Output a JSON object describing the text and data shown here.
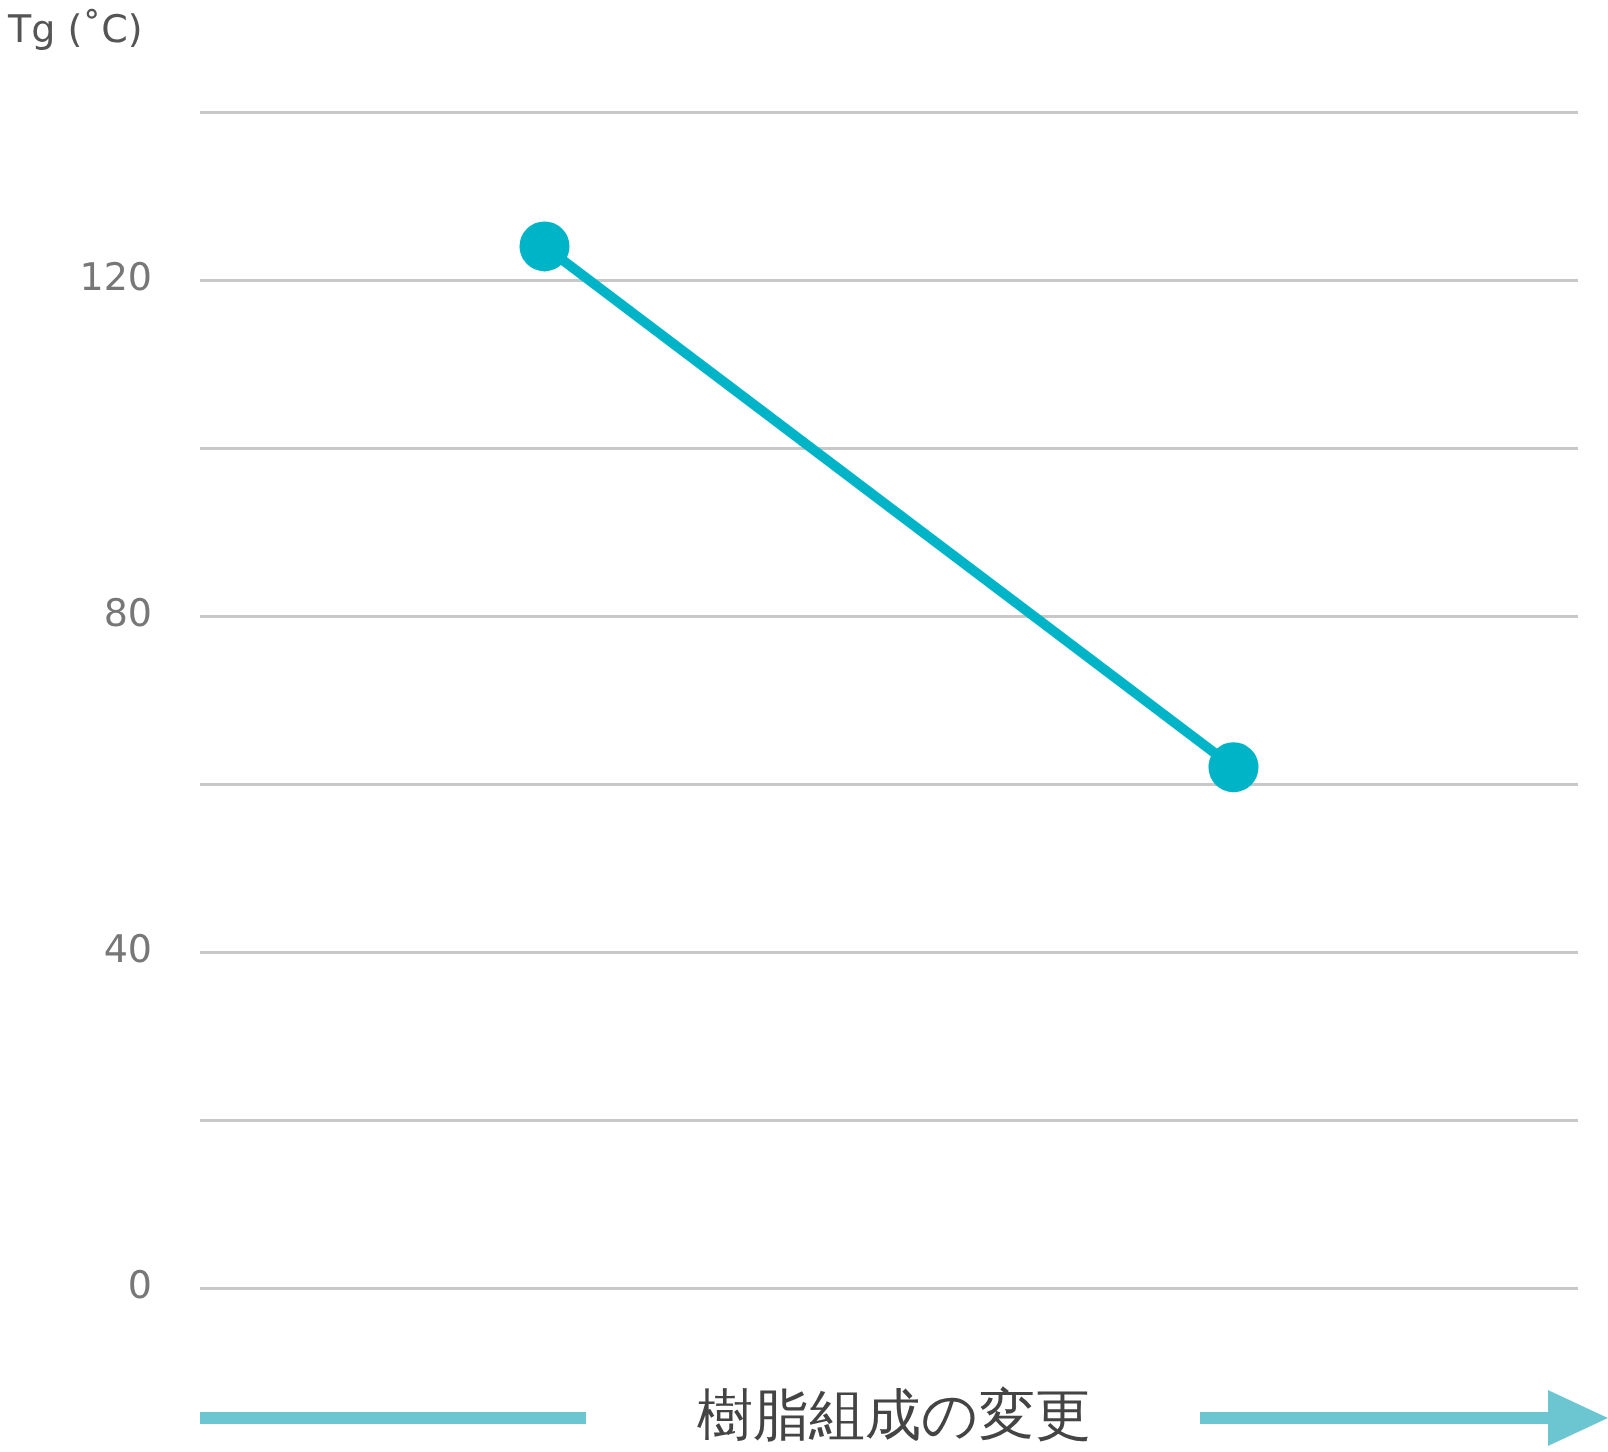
{
  "chart_data": {
    "type": "line",
    "ylabel": "Tg (˚C)",
    "xlabel": "樹脂組成の変更",
    "categories": [
      null,
      null
    ],
    "series": [
      {
        "color": "#00b4c8",
        "values": [
          124,
          62
        ]
      }
    ],
    "ylim": [
      0,
      140
    ],
    "yticks": [
      0,
      {
        "value": 20,
        "label": null
      },
      40,
      {
        "value": 60,
        "label": null
      },
      80,
      {
        "value": 100,
        "label": null
      },
      120,
      {
        "value": 140,
        "label": null
      }
    ],
    "grid": "y",
    "legend": false,
    "marker": "circle",
    "line_style": "solid",
    "tick_labels": "y"
  }
}
